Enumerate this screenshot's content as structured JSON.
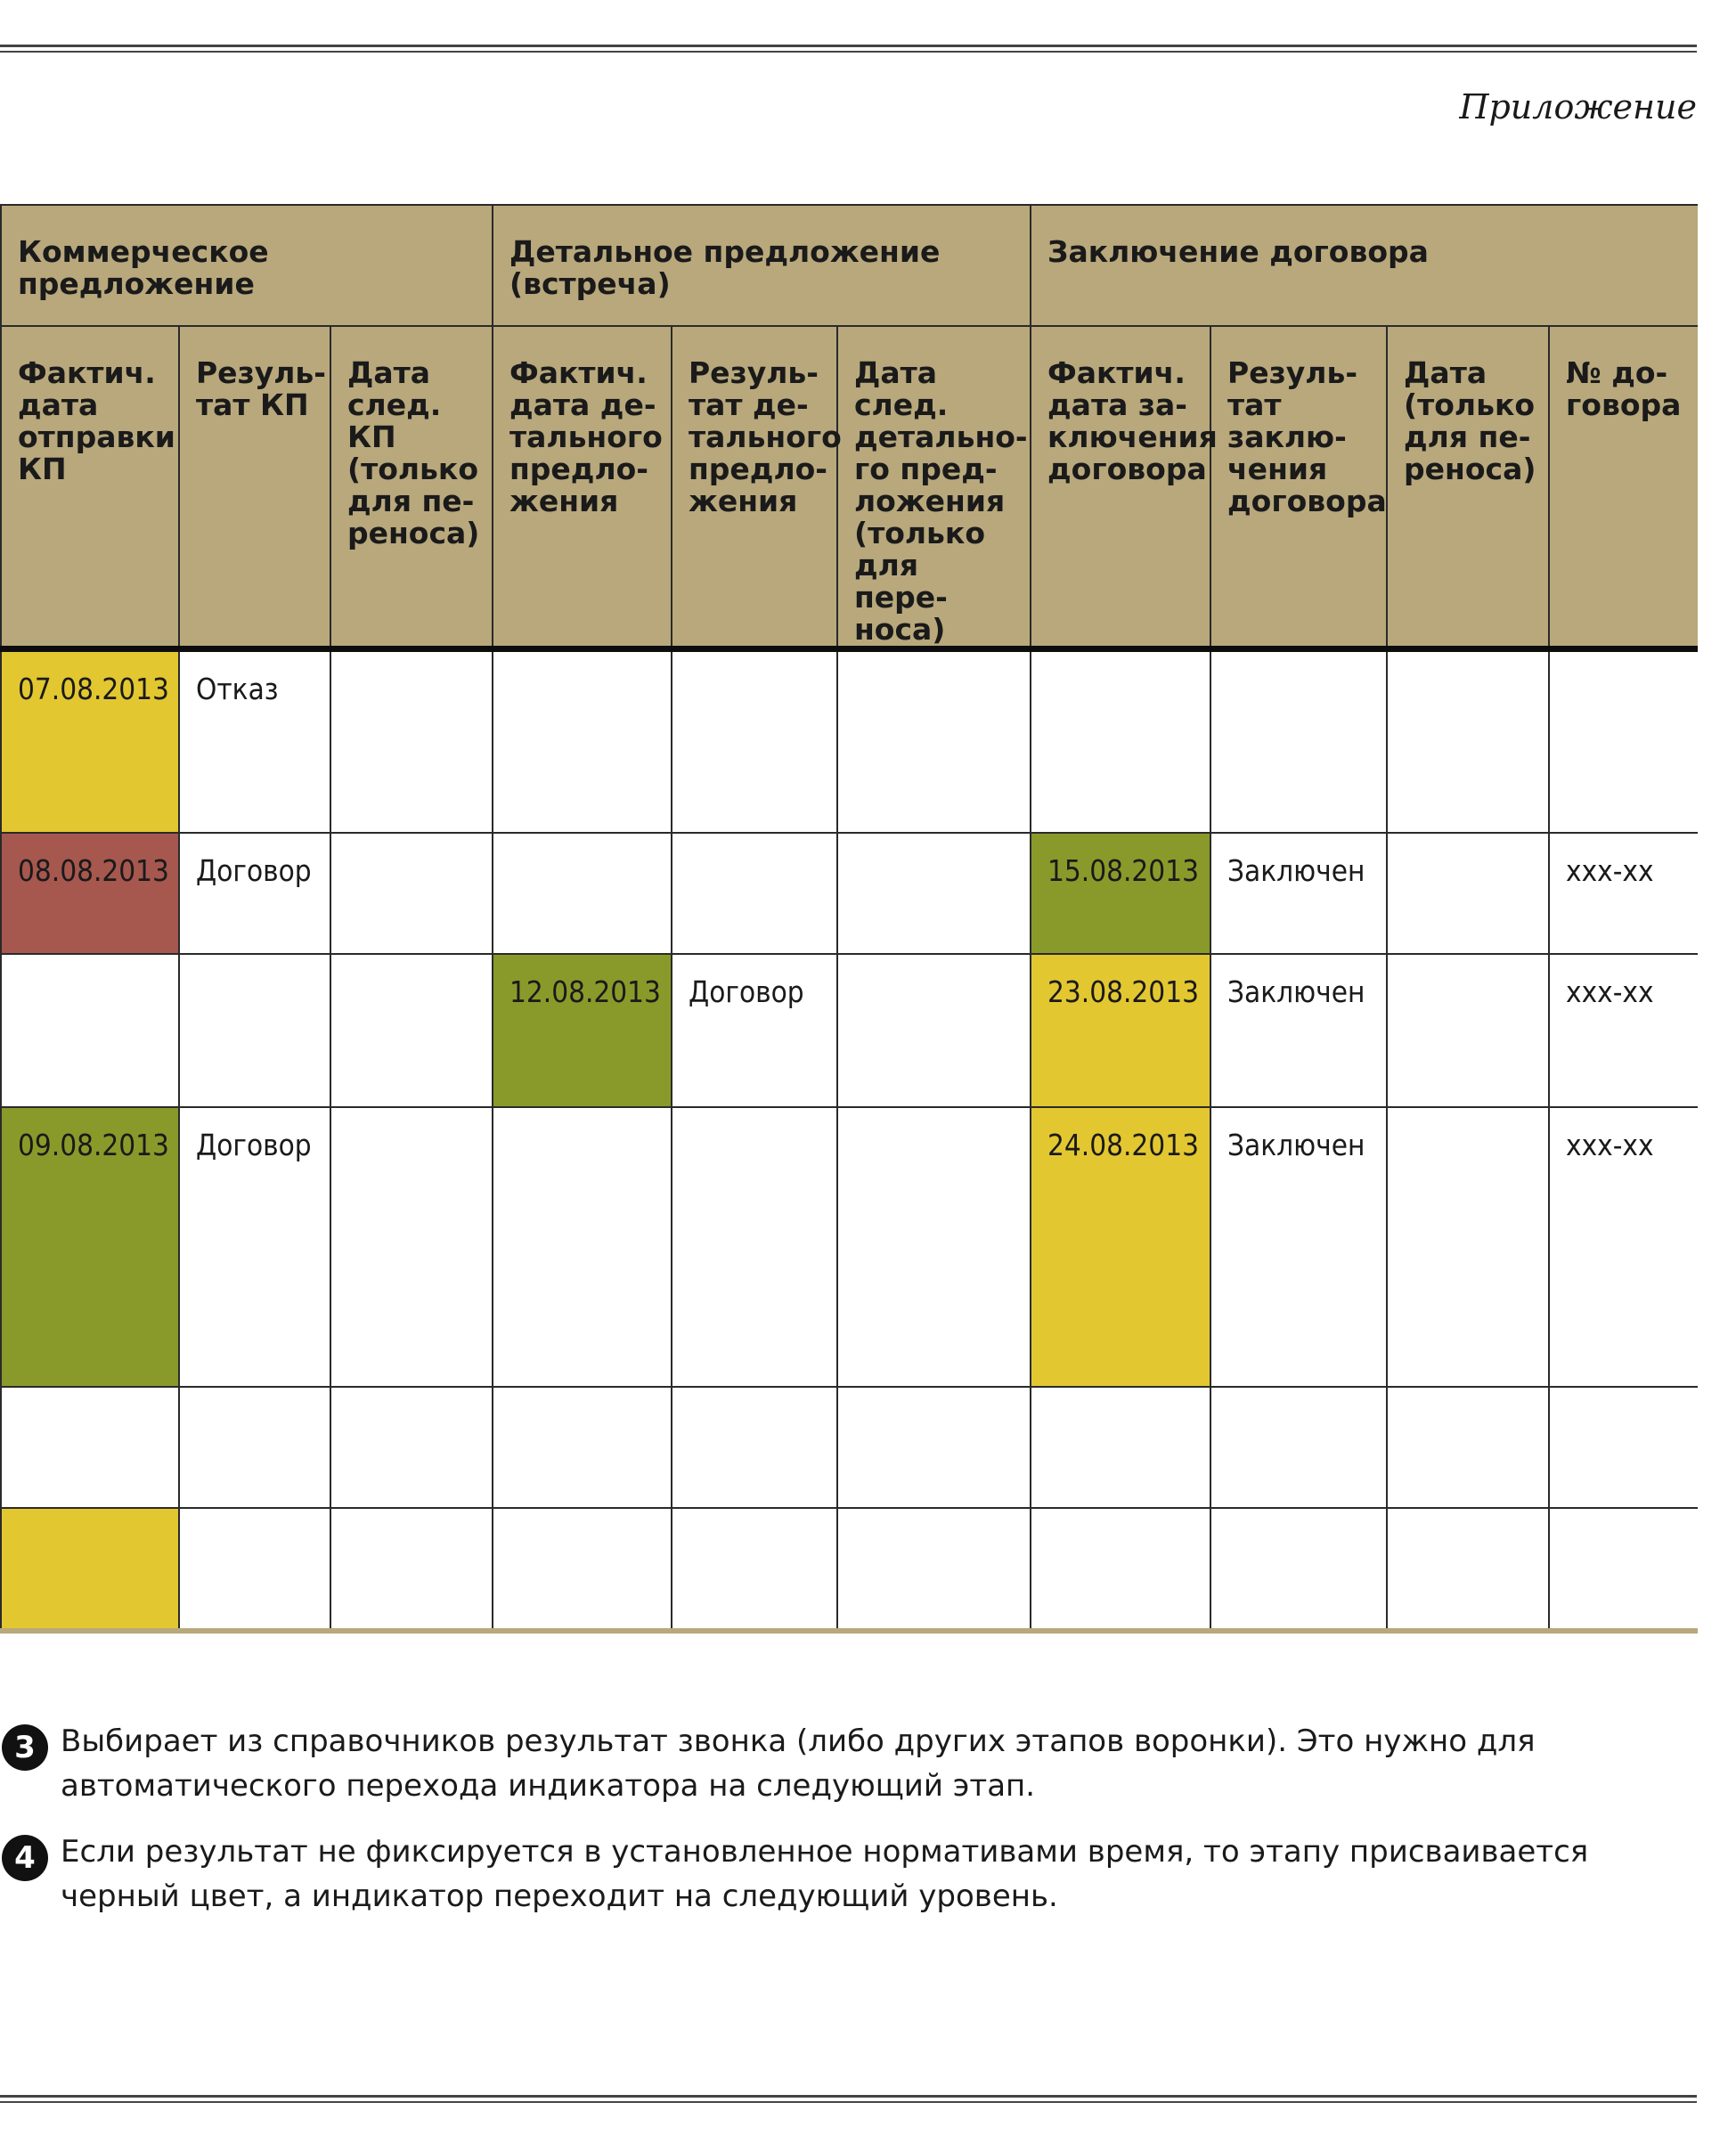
{
  "header": {
    "section_title": "Приложение"
  },
  "table": {
    "groups": [
      {
        "label": "Коммерческое предложение"
      },
      {
        "label": "Детальное предложение (встреча)"
      },
      {
        "label": "Заключение договора"
      }
    ],
    "columns": [
      "Фактич. дата отправки КП",
      "Резуль-тат КП",
      "Дата след. КП (только для пе-реноса)",
      "Фактич. дата де-тального предло-жения",
      "Резуль-тат де-тального предло-жения",
      "Дата след. детально-го пред-ложения (только для пере-носа)",
      "Фактич. дата за-ключения договора",
      "Резуль-тат заклю-чения договора",
      "Дата (только для пе-реноса)",
      "№ до-говора"
    ],
    "rows": [
      {
        "cells": [
          "07.08.2013",
          "Отказ",
          "",
          "",
          "",
          "",
          "",
          "",
          "",
          ""
        ],
        "colors": [
          "yellow",
          "",
          "",
          "",
          "",
          "",
          "",
          "",
          "",
          ""
        ]
      },
      {
        "cells": [
          "08.08.2013",
          "Договор",
          "",
          "",
          "",
          "",
          "15.08.2013",
          "Заключен",
          "",
          "ххх-хх"
        ],
        "colors": [
          "red",
          "",
          "",
          "",
          "",
          "",
          "green",
          "",
          "",
          ""
        ]
      },
      {
        "cells": [
          "",
          "",
          "",
          "12.08.2013",
          "Договор",
          "",
          "23.08.2013",
          "Заключен",
          "",
          "ххх-хх"
        ],
        "colors": [
          "",
          "",
          "",
          "green",
          "",
          "",
          "yellow",
          "",
          "",
          ""
        ]
      },
      {
        "cells": [
          "09.08.2013",
          "Договор",
          "",
          "",
          "",
          "",
          "24.08.2013",
          "Заключен",
          "",
          "ххх-хх"
        ],
        "colors": [
          "green",
          "",
          "",
          "",
          "",
          "",
          "yellow",
          "",
          "",
          ""
        ]
      },
      {
        "cells": [
          "",
          "",
          "",
          "",
          "",
          "",
          "",
          "",
          "",
          ""
        ],
        "colors": [
          "",
          "",
          "",
          "",
          "",
          "",
          "",
          "",
          "",
          ""
        ]
      },
      {
        "cells": [
          "",
          "",
          "",
          "",
          "",
          "",
          "",
          "",
          "",
          ""
        ],
        "colors": [
          "yellow",
          "",
          "",
          "",
          "",
          "",
          "",
          "",
          "",
          ""
        ]
      }
    ]
  },
  "notes": [
    {
      "number": "3",
      "text": "Выбирает из справочников результат звонка (либо других этапов воронки). Это нужно для автоматического перехода индикатора на следующий этап."
    },
    {
      "number": "4",
      "text": "Если результат не фиксируется в установленное нормативами время, то этапу присваивается черный цвет, а индикатор переходит на следующий уровень."
    }
  ],
  "colors": {
    "header_bg": "#b8a87c",
    "yellow": "#e3c731",
    "red": "#a6574e",
    "green": "#8a9a2a"
  }
}
